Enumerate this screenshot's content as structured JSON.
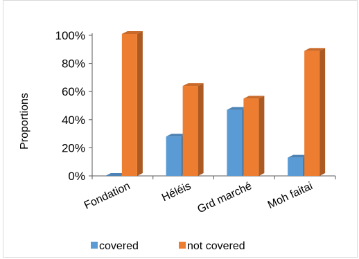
{
  "chart_data": {
    "type": "bar",
    "title": "",
    "xlabel": "",
    "ylabel": "Proportions",
    "categories": [
      "Fondation",
      "Héléis",
      "Grd marché",
      "Moh faitai"
    ],
    "series": [
      {
        "name": "covered",
        "values": [
          0,
          28,
          47,
          13
        ]
      },
      {
        "name": "not covered",
        "values": [
          101,
          64,
          55,
          89
        ]
      }
    ],
    "ylim": [
      0,
      100
    ],
    "yticks": [
      0,
      20,
      40,
      60,
      80,
      100
    ],
    "ytick_labels": [
      "0%",
      "20%",
      "40%",
      "60%",
      "80%",
      "100%"
    ],
    "grid": false,
    "legend": "bottom",
    "style": "3d-column",
    "colors": {
      "covered": "#5b9bd5",
      "not_covered": "#ed7d31"
    }
  }
}
